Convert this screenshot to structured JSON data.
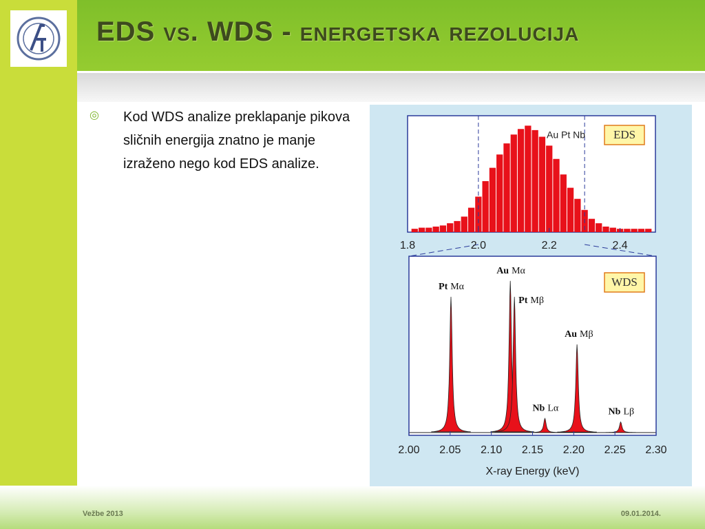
{
  "title": "EDS vs. WDS - energetska rezolucija",
  "bullets": [
    "Kod WDS analize preklapanje pikova sličnih energija znatno je manje izraženo nego kod EDS analize."
  ],
  "footer": {
    "left": "Vežbe 2013",
    "right": "09.01.2014."
  },
  "chart_data": [
    {
      "type": "histogram",
      "legend": "EDS",
      "annotation": "Au  Pt  Nb",
      "color": "#e8111a",
      "bins": [
        1.81,
        1.83,
        1.85,
        1.87,
        1.89,
        1.91,
        1.93,
        1.95,
        1.97,
        1.99,
        2.01,
        2.03,
        2.05,
        2.07,
        2.09,
        2.11,
        2.13,
        2.15,
        2.17,
        2.19,
        2.21,
        2.23,
        2.25,
        2.27,
        2.29,
        2.31,
        2.33,
        2.35,
        2.37,
        2.39,
        2.41,
        2.43,
        2.45,
        2.47,
        2.49
      ],
      "values": [
        3,
        4,
        4,
        5,
        6,
        8,
        10,
        14,
        22,
        32,
        46,
        58,
        70,
        80,
        88,
        93,
        96,
        92,
        86,
        78,
        66,
        52,
        40,
        30,
        20,
        12,
        8,
        5,
        4,
        3,
        3,
        3,
        3,
        3
      ],
      "markers": [
        2.0,
        2.3
      ],
      "xlim": [
        1.8,
        2.5
      ],
      "ylim": [
        0,
        100
      ],
      "xticks": [
        1.8,
        {
          "value": 2.0,
          "label": "2.0"
        },
        2.2,
        2.4
      ]
    },
    {
      "type": "peaks",
      "legend": "WDS",
      "color": "#e8111a",
      "xlabel": "X-ray Energy (keV)",
      "peaks": [
        {
          "element": "Pt",
          "line": "Mα",
          "x": 2.051,
          "value": 77
        },
        {
          "element": "Au",
          "line": "Mα",
          "x": 2.123,
          "value": 86
        },
        {
          "element": "Pt",
          "line": "Mβ",
          "x": 2.128,
          "value": 77
        },
        {
          "element": "Nb",
          "line": "Lα",
          "x": 2.165,
          "value": 8
        },
        {
          "element": "Au",
          "line": "Mβ",
          "x": 2.204,
          "value": 50
        },
        {
          "element": "Nb",
          "line": "Lβ",
          "x": 2.257,
          "value": 6
        }
      ],
      "xlim": [
        2.0,
        2.3
      ],
      "ylim": [
        0,
        100
      ],
      "xticks": [
        {
          "value": 2.0,
          "label": "2.00"
        },
        {
          "value": 2.05,
          "label": "2.05"
        },
        {
          "value": 2.1,
          "label": "2.10"
        },
        {
          "value": 2.15,
          "label": "2.15"
        },
        {
          "value": 2.2,
          "label": "2.20"
        },
        {
          "value": 2.25,
          "label": "2.25"
        },
        {
          "value": 2.3,
          "label": "2.30"
        }
      ]
    }
  ]
}
